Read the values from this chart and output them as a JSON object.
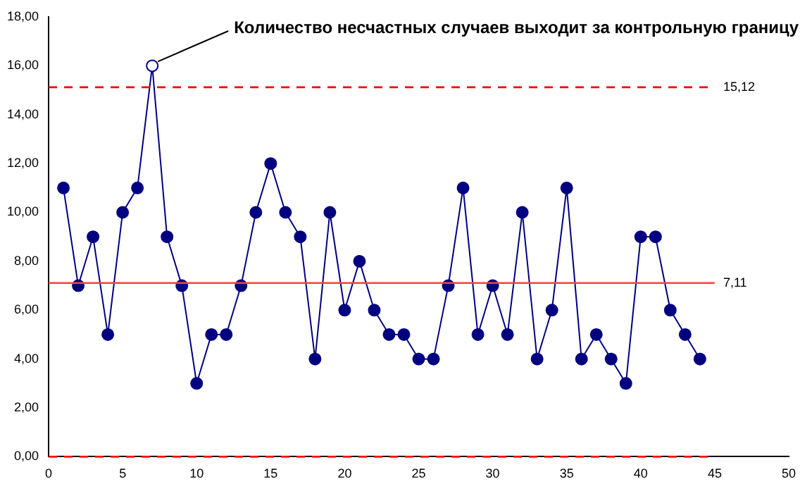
{
  "chart_data": {
    "type": "line",
    "x": [
      1,
      2,
      3,
      4,
      5,
      6,
      7,
      8,
      9,
      10,
      11,
      12,
      13,
      14,
      15,
      16,
      17,
      18,
      19,
      20,
      21,
      22,
      23,
      24,
      25,
      26,
      27,
      28,
      29,
      30,
      31,
      32,
      33,
      34,
      35,
      36,
      37,
      38,
      39,
      40,
      41,
      42,
      43,
      44
    ],
    "series": [
      {
        "color": "#000080",
        "values": [
          11,
          7,
          9,
          5,
          10,
          11,
          16,
          9,
          7,
          3,
          5,
          5,
          7,
          10,
          12,
          10,
          9,
          4,
          10,
          6,
          8,
          6,
          5,
          5,
          4,
          4,
          7,
          11,
          5,
          7,
          5,
          10,
          4,
          6,
          11,
          4,
          5,
          4,
          3,
          9,
          9,
          6,
          5,
          4
        ],
        "colors": [
          "#000080",
          "#000080",
          "#000080",
          "#000080",
          "#000080",
          "#000080",
          "#ffffff",
          "#000080",
          "#000080",
          "#000080",
          "#000080",
          "#000080",
          "#000080",
          "#000080",
          "#000080",
          "#000080",
          "#000080",
          "#000080",
          "#000080",
          "#000080",
          "#000080",
          "#000080",
          "#000080",
          "#000080",
          "#000080",
          "#000080",
          "#000080",
          "#000080",
          "#000080",
          "#000080",
          "#000080",
          "#000080",
          "#000080",
          "#000080",
          "#000080",
          "#000080",
          "#000080",
          "#000080",
          "#000080",
          "#000080",
          "#000080",
          "#000080",
          "#000080",
          "#000080"
        ]
      }
    ],
    "xlim": [
      0,
      50
    ],
    "xticks": [
      0,
      5,
      10,
      15,
      20,
      25,
      30,
      35,
      40,
      45,
      50
    ],
    "ylim": [
      0,
      18
    ],
    "yticks": [
      {
        "value": 0,
        "label": "0,00"
      },
      {
        "value": 2,
        "label": "2,00"
      },
      {
        "value": 4,
        "label": "4,00"
      },
      {
        "value": 6,
        "label": "6,00"
      },
      {
        "value": 8,
        "label": "8,00"
      },
      {
        "value": 10,
        "label": "10,00"
      },
      {
        "value": 12,
        "label": "12,00"
      },
      {
        "value": 14,
        "label": "14,00"
      },
      {
        "value": 16,
        "label": "16,00"
      },
      {
        "value": 18,
        "label": "18,00"
      }
    ],
    "ref_lines": [
      {
        "axis": "y",
        "value": 15.12,
        "label": "15,12",
        "color": "#ff0000",
        "line_style": "dashed"
      },
      {
        "axis": "y",
        "value": 7.11,
        "label": "7,11",
        "color": "#ff4040",
        "line_style": "solid"
      },
      {
        "axis": "y",
        "value": 0,
        "label": null,
        "color": "#ff0000",
        "line_style": "dashed"
      }
    ],
    "annotations": [
      {
        "text": "Количество несчастных случаев выходит за контрольную границу",
        "x": 7,
        "y": 16
      }
    ],
    "grid": false,
    "legend": false,
    "marker": "circle",
    "line_style": "solid"
  }
}
